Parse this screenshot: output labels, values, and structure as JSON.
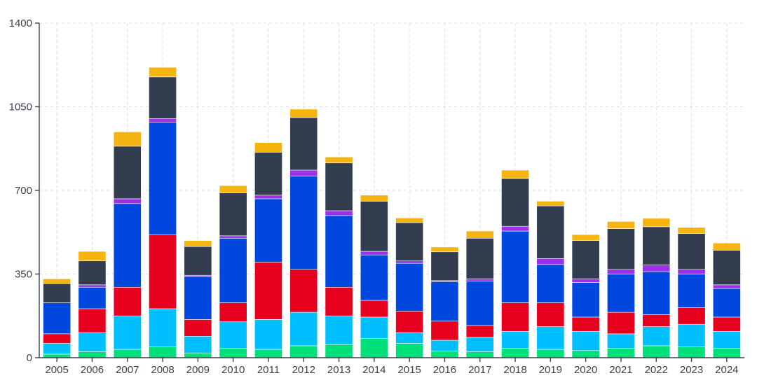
{
  "chart_data": {
    "type": "bar",
    "stacked": true,
    "title": "",
    "xlabel": "",
    "ylabel": "",
    "ylim": [
      0,
      1400
    ],
    "yticks": [
      0,
      350,
      700,
      1050,
      1400
    ],
    "grid": true,
    "legend": "none",
    "categories": [
      "2005",
      "2006",
      "2007",
      "2008",
      "2009",
      "2010",
      "2011",
      "2012",
      "2013",
      "2014",
      "2015",
      "2016",
      "2017",
      "2018",
      "2019",
      "2020",
      "2021",
      "2022",
      "2023",
      "2024"
    ],
    "series": [
      {
        "color": "#00e07a",
        "values": [
          15,
          25,
          35,
          45,
          20,
          40,
          35,
          50,
          55,
          80,
          60,
          28,
          25,
          40,
          35,
          30,
          40,
          50,
          45,
          40
        ]
      },
      {
        "color": "#00bfff",
        "values": [
          45,
          80,
          140,
          160,
          70,
          110,
          125,
          140,
          120,
          90,
          45,
          45,
          60,
          70,
          95,
          80,
          60,
          80,
          95,
          70
        ]
      },
      {
        "color": "#e8001f",
        "values": [
          40,
          100,
          120,
          310,
          70,
          80,
          240,
          180,
          120,
          70,
          90,
          80,
          50,
          120,
          100,
          60,
          90,
          50,
          70,
          60
        ]
      },
      {
        "color": "#0047e0",
        "values": [
          130,
          90,
          350,
          470,
          180,
          270,
          265,
          390,
          300,
          190,
          200,
          165,
          185,
          300,
          160,
          145,
          160,
          180,
          140,
          120
        ]
      },
      {
        "color": "#9b30e8",
        "values": [
          0,
          10,
          20,
          15,
          5,
          10,
          15,
          25,
          20,
          15,
          10,
          5,
          10,
          20,
          25,
          15,
          20,
          28,
          20,
          15
        ]
      },
      {
        "color": "#323e50",
        "values": [
          80,
          100,
          220,
          175,
          120,
          180,
          180,
          220,
          200,
          210,
          160,
          120,
          170,
          200,
          220,
          160,
          170,
          160,
          150,
          145
        ]
      },
      {
        "color": "#f5b40f",
        "values": [
          20,
          40,
          60,
          40,
          25,
          30,
          40,
          35,
          25,
          25,
          20,
          20,
          30,
          35,
          20,
          25,
          30,
          35,
          25,
          30
        ]
      }
    ]
  }
}
